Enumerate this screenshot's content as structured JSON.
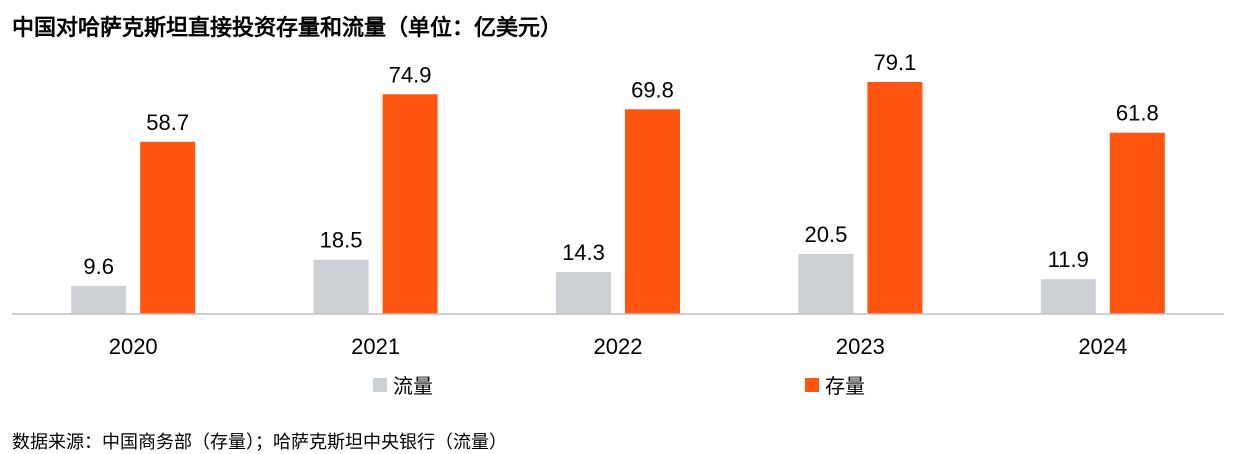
{
  "chart_data": {
    "type": "bar",
    "title": "中国对哈萨克斯坦直接投资存量和流量（单位：亿美元）",
    "categories": [
      "2020",
      "2021",
      "2022",
      "2023",
      "2024"
    ],
    "series": [
      {
        "name": "流量",
        "values": [
          9.6,
          18.5,
          14.3,
          20.5,
          11.9
        ],
        "color": "#CDD1D6"
      },
      {
        "name": "存量",
        "values": [
          58.7,
          74.9,
          69.8,
          79.1,
          61.8
        ],
        "color": "#FF5511"
      }
    ],
    "ylim": [
      0,
      90
    ],
    "grid": false,
    "legend": "bottom"
  },
  "source": "数据来源：中国商务部（存量）；哈萨克斯坦中央银行（流量）"
}
